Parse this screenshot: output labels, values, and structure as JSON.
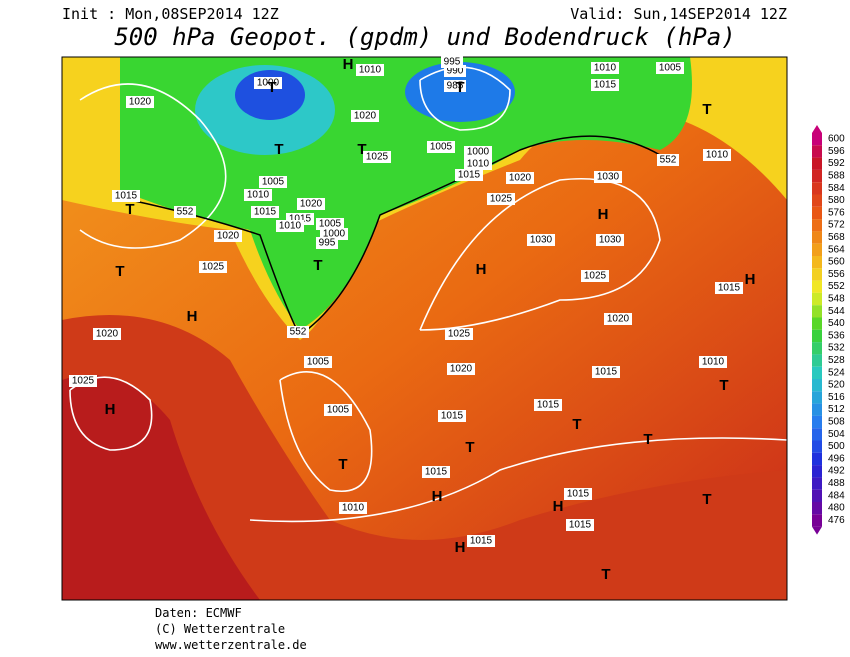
{
  "header": {
    "init": "Init : Mon,08SEP2014 12Z",
    "valid": "Valid: Sun,14SEP2014 12Z",
    "title": "500 hPa Geopot. (gpdm) und Bodendruck (hPa)"
  },
  "map": {
    "isobar_labels": [
      "1020",
      "1015",
      "552",
      "1020",
      "1025",
      "1020",
      "1025",
      "1005",
      "552",
      "1005",
      "1010",
      "1015",
      "1015",
      "1020",
      "1025",
      "1015",
      "1015",
      "1020",
      "1025",
      "1030",
      "1030",
      "1030",
      "1025",
      "1020",
      "1015",
      "1010",
      "1000",
      "1005",
      "985",
      "990",
      "995",
      "1010",
      "1005",
      "1015",
      "552",
      "1010",
      "1015",
      "1010",
      "1015",
      "1015",
      "1015",
      "1020",
      "1025",
      "1005",
      "1010",
      "1015",
      "1020",
      "1015",
      "1010",
      "1005",
      "1000",
      "995",
      "1000",
      "1010"
    ],
    "pressure_centers": [
      "T",
      "T",
      "T",
      "T",
      "T",
      "T",
      "H",
      "T",
      "H",
      "T",
      "H",
      "H",
      "T",
      "H",
      "T",
      "T",
      "T",
      "H",
      "T",
      "T",
      "H",
      "H",
      "T",
      "H"
    ]
  },
  "legend": {
    "levels": [
      600,
      596,
      592,
      588,
      584,
      580,
      576,
      572,
      568,
      564,
      560,
      556,
      552,
      548,
      544,
      540,
      536,
      532,
      528,
      524,
      520,
      516,
      512,
      508,
      504,
      500,
      496,
      492,
      488,
      484,
      480,
      476
    ]
  },
  "footer": {
    "source": "Daten: ECMWF",
    "copyright": "(C) Wetterzentrale",
    "url": "www.wetterzentrale.de"
  }
}
